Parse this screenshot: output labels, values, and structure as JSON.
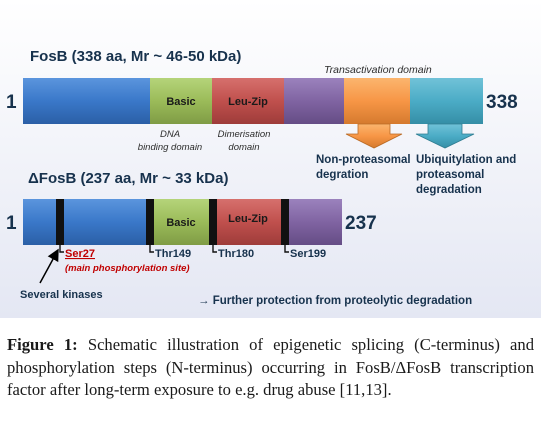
{
  "fosb": {
    "title": "FosB (338 aa, Mr ~ 46-50 kDa)",
    "start": "1",
    "end": "338",
    "basic": "Basic",
    "leuzip": "Leu-Zip",
    "transactivation": "Transactivation domain",
    "dna_binding_line1": "DNA",
    "dna_binding_line2": "binding domain",
    "dimer_line1": "Dimerisation",
    "dimer_line2": "domain",
    "nonprot_line1": "Non-proteasomal",
    "nonprot_line2": "degration",
    "ubiq_line1": "Ubiquitylation and",
    "ubiq_line2": "proteasomal",
    "ubiq_line3": "degradation"
  },
  "dfosb": {
    "title": "ΔFosB (237 aa, Mr ~ 33 kDa)",
    "start": "1",
    "end": "237",
    "basic": "Basic",
    "leuzip": "Leu-Zip",
    "ser27": "Ser27",
    "ser27_note": "(main phosphorylation site)",
    "thr149": "Thr149",
    "thr180": "Thr180",
    "ser199": "Ser199",
    "kinases": "Several kinases",
    "protection": "→ Further protection from proteolytic degradation"
  },
  "caption": {
    "label": "Figure 1:",
    "text": " Schematic illustration of epigenetic splicing (C-terminus) and phosphorylation steps (N-terminus) occurring in FosB/ΔFosB transcription factor after long-term exposure to e.g. drug abuse [11,13]."
  },
  "colors": {
    "blue": "#3a78c9",
    "green": "#9bbb59",
    "red": "#c0504d",
    "purple": "#8064a2",
    "orange": "#f79646",
    "teal": "#4bacc6",
    "panel": "#eef0f8",
    "ser27_red": "#c00000",
    "text_dark": "#17324d"
  }
}
